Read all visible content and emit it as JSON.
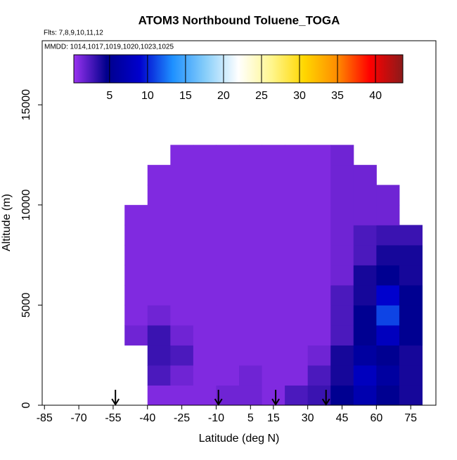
{
  "chart_data": {
    "type": "heatmap",
    "title": "ATOM3 Northbound Toluene_TOGA",
    "annotations": [
      "Flts: 7,8,9,10,11,12",
      "MMDD: 1014,1017,1019,1020,1023,1025"
    ],
    "x_label": "Latitude (deg N)",
    "y_label": "Altitude (m)",
    "xlim": [
      -86,
      86
    ],
    "xticks": [
      -85,
      -70,
      -55,
      -40,
      -25,
      -10,
      5,
      15,
      30,
      45,
      60,
      75
    ],
    "ylim": [
      0,
      18200
    ],
    "yticks": [
      0,
      5000,
      10000,
      15000
    ],
    "x_bins": [
      -50,
      -40,
      -30,
      -20,
      -10,
      0,
      10,
      20,
      30,
      40,
      50,
      60,
      70,
      80
    ],
    "y_bins": [
      0,
      1000,
      2000,
      3000,
      4000,
      5000,
      6000,
      7000,
      8000,
      9000,
      10000,
      11000,
      12000,
      13000
    ],
    "z": [
      [
        null,
        1,
        1,
        1,
        1.5,
        1.5,
        1,
        2.5,
        3,
        5,
        7,
        5,
        4
      ],
      [
        null,
        2.5,
        1.5,
        1,
        1,
        1.5,
        1,
        1,
        2.5,
        4,
        8,
        6,
        4
      ],
      [
        null,
        3,
        2.5,
        1,
        1,
        1,
        1,
        1,
        1.5,
        4,
        6,
        5,
        4
      ],
      [
        1.5,
        3,
        1.5,
        1,
        1,
        1,
        1,
        1,
        1,
        2.5,
        5,
        8,
        5
      ],
      [
        1,
        1.5,
        1,
        1,
        1,
        1,
        1,
        1,
        1,
        2.5,
        5,
        11,
        5
      ],
      [
        1,
        1,
        1,
        1,
        1,
        1,
        1,
        1,
        1,
        2.5,
        4,
        9,
        5
      ],
      [
        1,
        1,
        1,
        1,
        1,
        1,
        1,
        1,
        1,
        1.5,
        4,
        5,
        4
      ],
      [
        1,
        1,
        1,
        1,
        1,
        1,
        1,
        1,
        1,
        1.5,
        2.5,
        4,
        4
      ],
      [
        1,
        1,
        1,
        1,
        1,
        1,
        1,
        1,
        1,
        1.5,
        2.5,
        3,
        3
      ],
      [
        1,
        1,
        1,
        1,
        1,
        1,
        1,
        1,
        1,
        1.5,
        1.5,
        1.5,
        null
      ],
      [
        null,
        1,
        1,
        1,
        1,
        1,
        1,
        1,
        1,
        1.5,
        1.5,
        1.5,
        null
      ],
      [
        null,
        1,
        1,
        1,
        1,
        1,
        1,
        1,
        1,
        1.5,
        1.5,
        null,
        null
      ],
      [
        null,
        null,
        1,
        1,
        1,
        1,
        1,
        1,
        1,
        1.5,
        null,
        null,
        null
      ]
    ],
    "clim": [
      0.3,
      43.6
    ],
    "cticks": [
      5,
      10,
      15,
      20,
      25,
      30,
      35,
      40
    ],
    "colormap": [
      "#9932f0",
      "#00008b",
      "#0000cd",
      "#1e90ff",
      "#87cefa",
      "#ffffff",
      "#fff68f",
      "#ffd700",
      "#ff8c00",
      "#ff0000",
      "#8b1a1a"
    ],
    "arrows": [
      -54,
      -9,
      16,
      38
    ]
  }
}
